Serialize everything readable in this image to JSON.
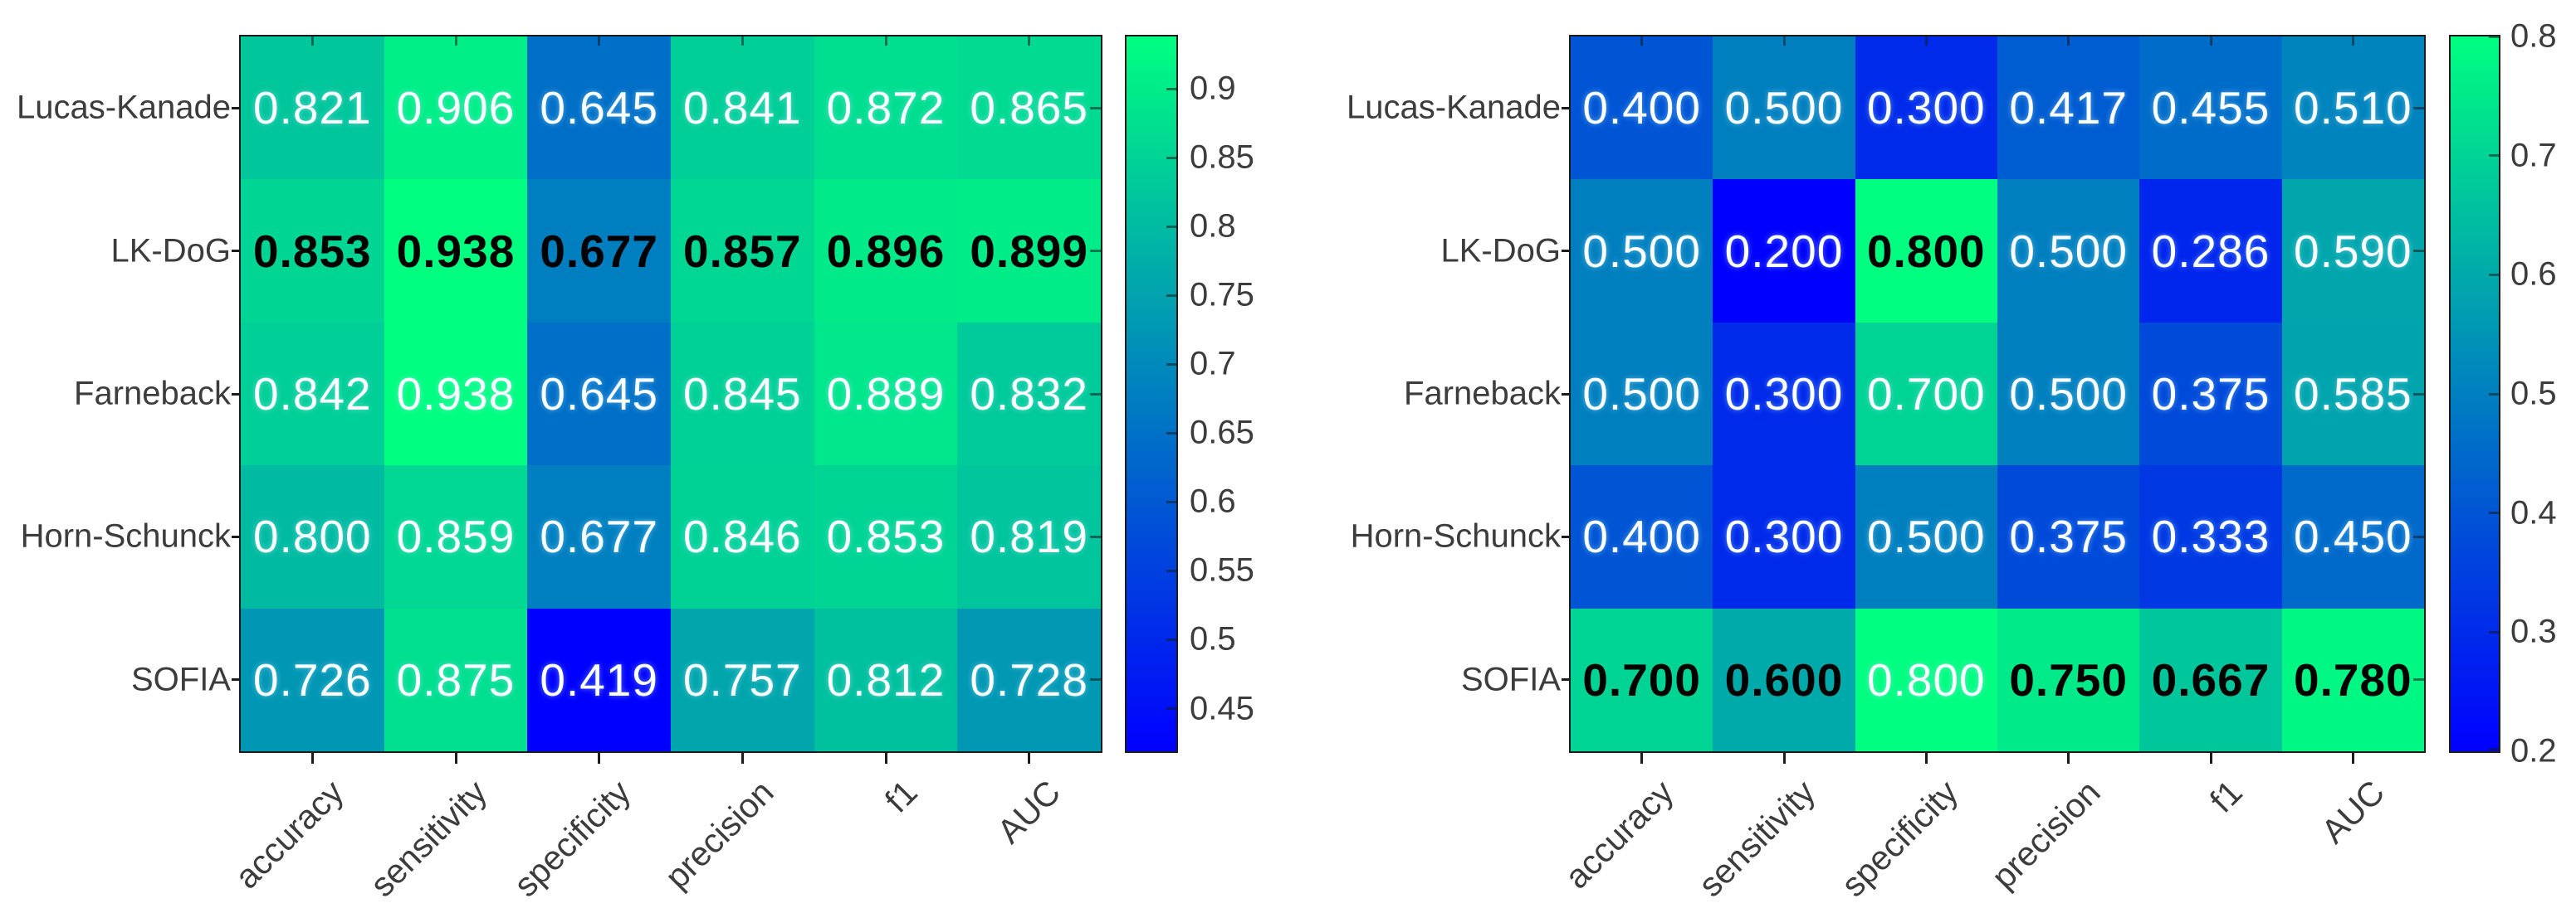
{
  "figure": {
    "background": "#ffffff",
    "description": "Two side-by-side MATLAB-style heatmaps comparing optical flow methods across classification metrics",
    "value_format": "%.3f",
    "text_color": "#3c3c3c",
    "cell_text_color": "#ffffff",
    "best_cell_text_color": "#000000"
  },
  "chart_data": [
    {
      "type": "heatmap",
      "title": "",
      "colormap": "winter",
      "rows": [
        "Lucas-Kanade",
        "LK-DoG",
        "Farneback",
        "Horn-Schunck",
        "SOFIA"
      ],
      "columns": [
        "accuracy",
        "sensitivity",
        "specificity",
        "precision",
        "f1",
        "AUC"
      ],
      "values": [
        [
          0.821,
          0.906,
          0.645,
          0.841,
          0.872,
          0.865
        ],
        [
          0.853,
          0.938,
          0.677,
          0.857,
          0.896,
          0.899
        ],
        [
          0.842,
          0.938,
          0.645,
          0.845,
          0.889,
          0.832
        ],
        [
          0.8,
          0.859,
          0.677,
          0.846,
          0.853,
          0.819
        ],
        [
          0.726,
          0.875,
          0.419,
          0.757,
          0.812,
          0.728
        ]
      ],
      "bold_cells": [
        [
          1,
          0
        ],
        [
          1,
          1
        ],
        [
          1,
          2
        ],
        [
          1,
          3
        ],
        [
          1,
          4
        ],
        [
          1,
          5
        ]
      ],
      "color_limits": [
        0.419,
        0.938
      ],
      "colorbar_ticks": [
        0.9,
        0.85,
        0.8,
        0.75,
        0.7,
        0.65,
        0.6,
        0.55,
        0.5,
        0.45
      ],
      "colorbar_position": "right",
      "grid": false
    },
    {
      "type": "heatmap",
      "title": "",
      "colormap": "winter",
      "rows": [
        "Lucas-Kanade",
        "LK-DoG",
        "Farneback",
        "Horn-Schunck",
        "SOFIA"
      ],
      "columns": [
        "accuracy",
        "sensitivity",
        "specificity",
        "precision",
        "f1",
        "AUC"
      ],
      "values": [
        [
          0.4,
          0.5,
          0.3,
          0.417,
          0.455,
          0.51
        ],
        [
          0.5,
          0.2,
          0.8,
          0.5,
          0.286,
          0.59
        ],
        [
          0.5,
          0.3,
          0.7,
          0.5,
          0.375,
          0.585
        ],
        [
          0.4,
          0.3,
          0.5,
          0.375,
          0.333,
          0.45
        ],
        [
          0.7,
          0.6,
          0.8,
          0.75,
          0.667,
          0.78
        ]
      ],
      "bold_cells": [
        [
          1,
          2
        ],
        [
          4,
          0
        ],
        [
          4,
          1
        ],
        [
          4,
          3
        ],
        [
          4,
          4
        ],
        [
          4,
          5
        ]
      ],
      "color_limits": [
        0.2,
        0.8
      ],
      "colorbar_ticks": [
        0.8,
        0.7,
        0.6,
        0.5,
        0.4,
        0.3,
        0.2
      ],
      "colorbar_position": "right",
      "grid": false
    }
  ]
}
